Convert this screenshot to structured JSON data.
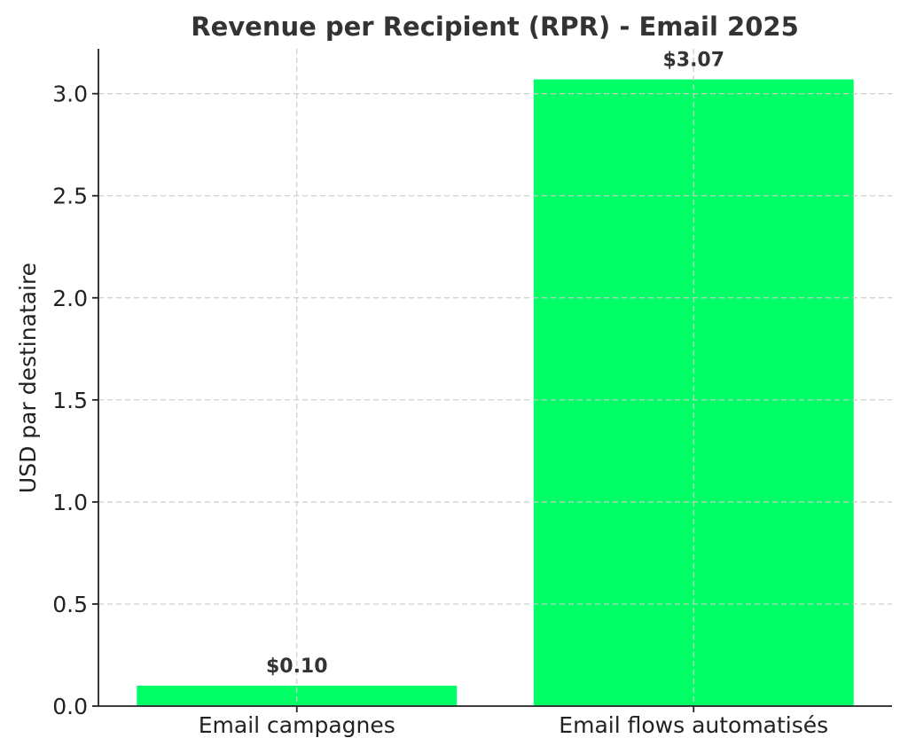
{
  "chart_data": {
    "type": "bar",
    "title": "Revenue per Recipient (RPR) - Email 2025",
    "xlabel": "",
    "ylabel": "USD par destinataire",
    "categories": [
      "Email campagnes",
      "Email flows automatisés"
    ],
    "values": [
      0.1,
      3.07
    ],
    "data_labels": [
      "$0.10",
      "$3.07"
    ],
    "ylim": [
      0,
      3.22
    ],
    "yticks": [
      0.0,
      0.5,
      1.0,
      1.5,
      2.0,
      2.5,
      3.0
    ],
    "ytick_labels": [
      "0.0",
      "0.5",
      "1.0",
      "1.5",
      "2.0",
      "2.5",
      "3.0"
    ],
    "grid": true,
    "bar_color": "#00ff66"
  }
}
